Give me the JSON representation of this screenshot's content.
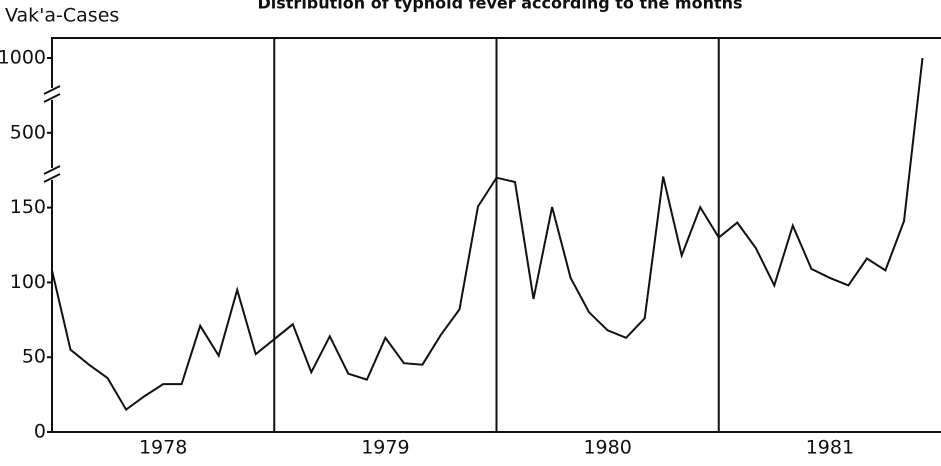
{
  "chart_data": {
    "type": "line",
    "title": "Distribution of typhoid fever according to the months",
    "y_label": "Vak'a-Cases",
    "groups": [
      "1978",
      "1979",
      "1980",
      "1981"
    ],
    "months_per_group": 12,
    "values": [
      108,
      55,
      45,
      36,
      15,
      24,
      32,
      32,
      71,
      51,
      95,
      52,
      62,
      72,
      40,
      64,
      39,
      35,
      63,
      46,
      45,
      65,
      82,
      155,
      290,
      270,
      89,
      153,
      103,
      80,
      68,
      63,
      76,
      295,
      118,
      152,
      130,
      140,
      123,
      98,
      138,
      109,
      103,
      98,
      116,
      108,
      141,
      1000
    ],
    "color": "#111111",
    "ylim": [
      0,
      1000
    ],
    "yticks": [
      0,
      50,
      100,
      150,
      500,
      1000
    ]
  }
}
